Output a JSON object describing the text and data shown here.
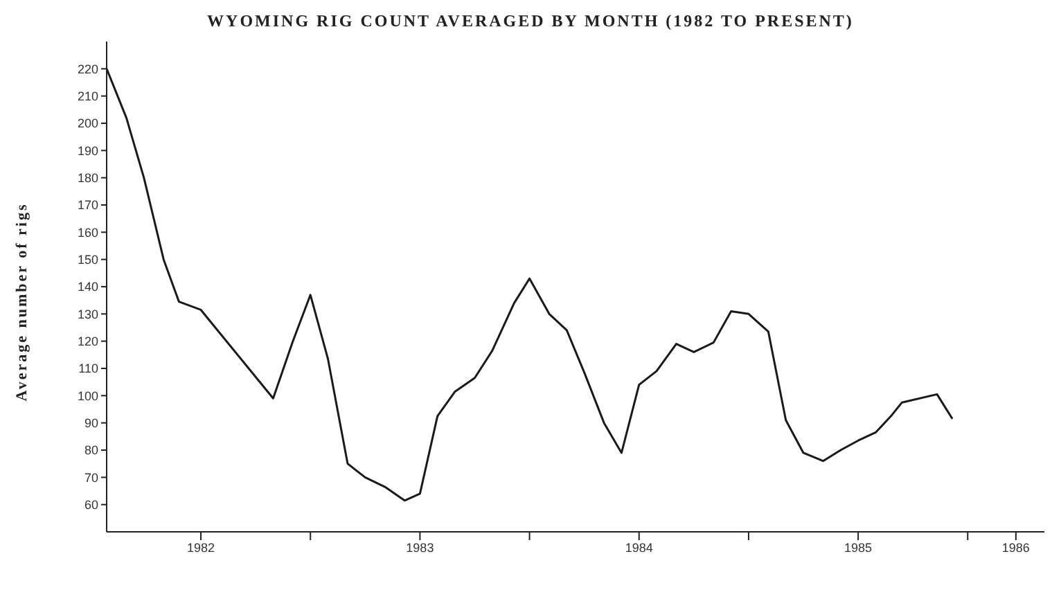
{
  "chart_data": {
    "type": "line",
    "title": "WYOMING RIG COUNT AVERAGED BY MONTH (1982 TO PRESENT)",
    "ylabel": "Average number of rigs",
    "x": [
      1982.07,
      1982.16,
      1982.24,
      1982.33,
      1982.4,
      1982.5,
      1982.83,
      1982.92,
      1983.0,
      1983.08,
      1983.17,
      1983.25,
      1983.34,
      1983.43,
      1983.5,
      1983.58,
      1983.66,
      1983.75,
      1983.83,
      1983.93,
      1984.0,
      1984.09,
      1984.17,
      1984.25,
      1984.34,
      1984.42,
      1984.5,
      1984.58,
      1984.67,
      1984.75,
      1984.84,
      1984.92,
      1985.0,
      1985.09,
      1985.17,
      1985.25,
      1985.34,
      1985.42,
      1985.5,
      1985.58,
      1985.65,
      1985.7,
      1985.86,
      1985.93
    ],
    "series": [
      {
        "color": "#1a1a1a",
        "values": [
          220,
          202,
          180,
          150,
          134.5,
          131.5,
          99,
          120,
          137,
          113.5,
          75,
          70,
          66.5,
          61.5,
          64,
          92.5,
          101.5,
          106.5,
          116.5,
          134,
          143,
          130,
          124,
          108.5,
          90,
          79,
          104,
          109,
          119,
          116,
          119.5,
          131,
          130,
          123.5,
          91,
          79,
          76,
          80,
          83.5,
          86.5,
          92.5,
          97.5,
          100.5,
          91.5
        ]
      }
    ],
    "xlim": [
      1982.07,
      1986.35
    ],
    "xticks": [
      {
        "value": 1982.5,
        "label": "1982"
      },
      {
        "value": 1983,
        "label": null
      },
      {
        "value": 1983.5,
        "label": "1983"
      },
      {
        "value": 1984,
        "label": null
      },
      {
        "value": 1984.5,
        "label": "1984"
      },
      {
        "value": 1985,
        "label": null
      },
      {
        "value": 1985.5,
        "label": "1985"
      },
      {
        "value": 1986,
        "label": null
      },
      {
        "value": 1986.22,
        "label": "1986"
      }
    ],
    "ylim": [
      50,
      230
    ],
    "yticks": [
      60,
      70,
      80,
      90,
      100,
      110,
      120,
      130,
      140,
      150,
      160,
      170,
      180,
      190,
      200,
      210,
      220
    ],
    "grid": false,
    "legend": false,
    "marker": "none",
    "line_style": "solid"
  }
}
